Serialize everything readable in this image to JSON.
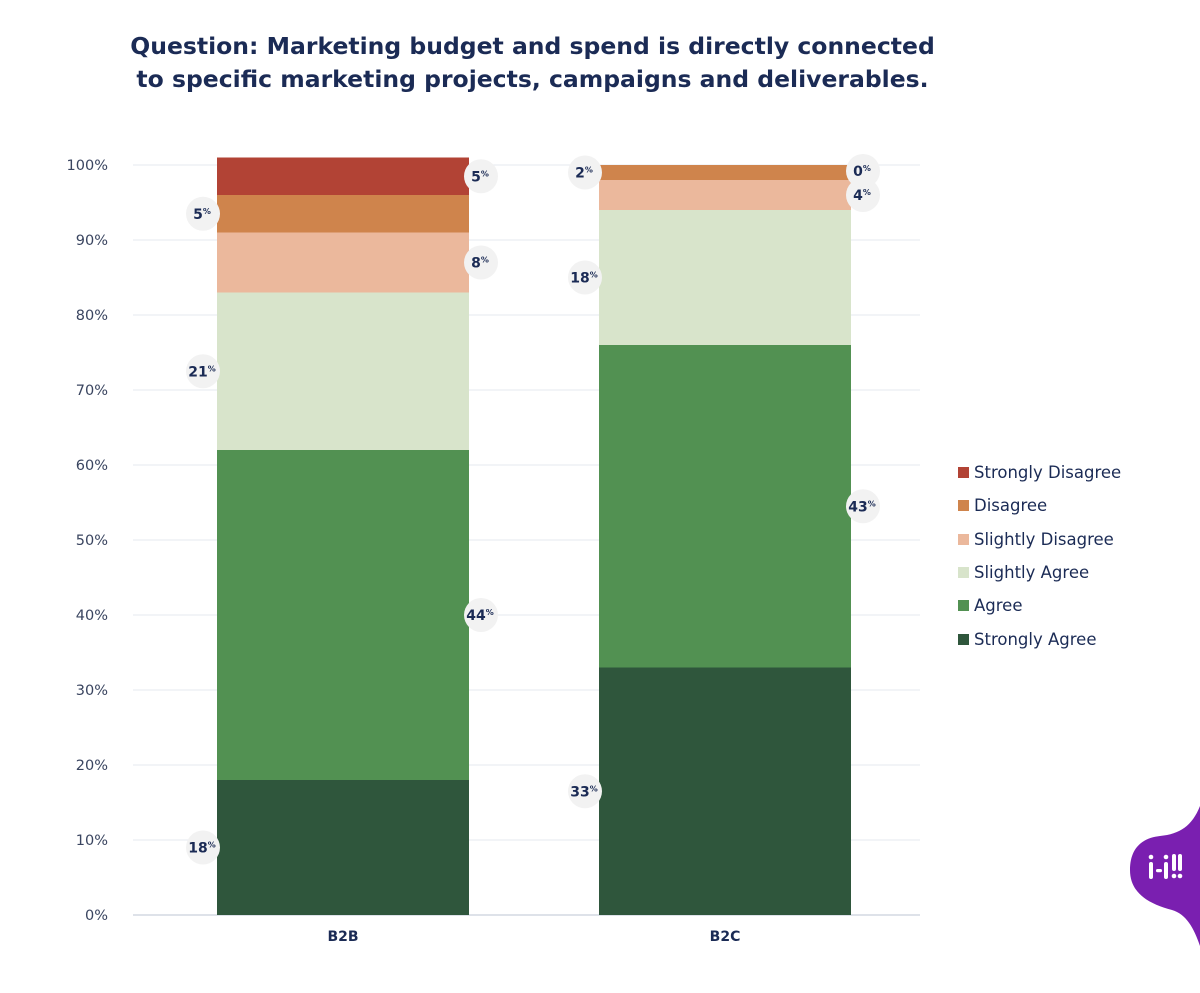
{
  "chart_data": {
    "type": "bar",
    "stacked": true,
    "title_lines": [
      "Question: Marketing budget and spend is directly connected",
      "to specific marketing projects, campaigns and deliverables."
    ],
    "categories": [
      "B2B",
      "B2C"
    ],
    "y_ticks": [
      "0%",
      "10%",
      "20%",
      "30%",
      "40%",
      "50%",
      "60%",
      "70%",
      "80%",
      "90%",
      "100%"
    ],
    "ylim": [
      0,
      100
    ],
    "grid": true,
    "legend_position": "right",
    "value_suffix": "%",
    "series": [
      {
        "name": "Strongly Agree",
        "color": "#2f563c",
        "values": [
          18,
          33
        ]
      },
      {
        "name": "Agree",
        "color": "#529152",
        "values": [
          44,
          43
        ]
      },
      {
        "name": "Slightly Agree",
        "color": "#d8e4cb",
        "values": [
          21,
          18
        ]
      },
      {
        "name": "Slightly Disagree",
        "color": "#ebb89c",
        "values": [
          8,
          4
        ]
      },
      {
        "name": "Disagree",
        "color": "#cf844c",
        "values": [
          5,
          2
        ]
      },
      {
        "name": "Strongly Disagree",
        "color": "#b24335",
        "values": [
          5,
          0
        ]
      }
    ]
  },
  "legend_items": [
    {
      "label": "Strongly Disagree",
      "color": "#b24335"
    },
    {
      "label": "Disagree",
      "color": "#cf844c"
    },
    {
      "label": "Slightly Disagree",
      "color": "#ebb89c"
    },
    {
      "label": "Slightly Agree",
      "color": "#d8e4cb"
    },
    {
      "label": "Agree",
      "color": "#529152"
    },
    {
      "label": "Strongly Agree",
      "color": "#2f563c"
    }
  ],
  "colors": {
    "text": "#1b2b55",
    "axis_text": "#3a4560",
    "grid": "#e6e9ef",
    "badge": "#f2f2f2",
    "logo": "#7a1fb0"
  }
}
